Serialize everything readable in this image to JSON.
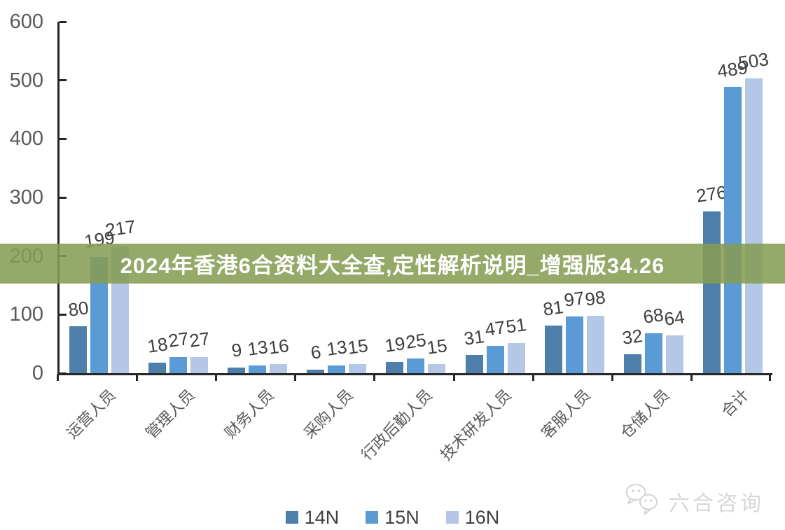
{
  "banner": {
    "text": "2024年香港6合资料大全查,定性解析说明_增强版34.26",
    "bg_color_rgba": "rgba(133,156,83,0.87)",
    "text_color": "#ffffff"
  },
  "watermark": {
    "text": "六合咨询",
    "icon": "wechat-chat-bubbles-icon",
    "color": "#d7d7d7"
  },
  "colors": {
    "axis": "#262626",
    "tick_label": "#595959",
    "value_label": "#3f3f3f",
    "legend_label": "#404040"
  },
  "chart_data": {
    "type": "bar",
    "title": "",
    "xlabel": "",
    "ylabel": "",
    "categories": [
      "运营人员",
      "管理人员",
      "财务人员",
      "采购人员",
      "行政后勤人员",
      "技术研发人员",
      "客服人员",
      "仓储人员",
      "合计"
    ],
    "series": [
      {
        "name": "14N",
        "color": "#4E7FAA",
        "values": [
          80,
          18,
          9,
          6,
          19,
          31,
          81,
          32,
          276
        ]
      },
      {
        "name": "15N",
        "color": "#5B9BD5",
        "values": [
          199,
          27,
          13,
          13,
          25,
          47,
          97,
          68,
          489
        ]
      },
      {
        "name": "16N",
        "color": "#B4C7E7",
        "values": [
          217,
          27,
          16,
          15,
          15,
          51,
          98,
          64,
          503
        ]
      }
    ],
    "ylim": [
      0,
      600
    ],
    "yticks": [
      0,
      100,
      200,
      300,
      400,
      500,
      600
    ],
    "grid": false,
    "data_labels": true,
    "legend_position": "bottom",
    "category_label_rotation_deg": 45
  }
}
